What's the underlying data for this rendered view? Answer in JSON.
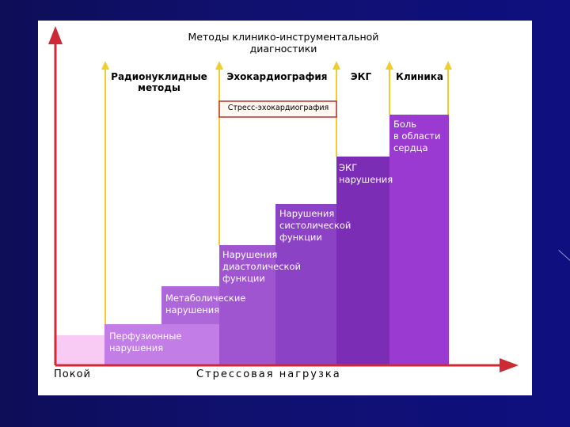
{
  "title": "Методы клинико-инструментальной диагностики",
  "method_headers": {
    "radionuclide": "Радионуклидные\nметоды",
    "echo": "Эхокардиография",
    "ecg": "ЭКГ",
    "clinic": "Клиника"
  },
  "stress_echo_label": "Стресс-эхокардиография",
  "steps": [
    {
      "label": "Перфузионные\nнарушения",
      "color": "#c27de6"
    },
    {
      "label": "Метаболические\nнарушения",
      "color": "#ae67d8"
    },
    {
      "label": "Нарушения\nдиастолической\nфункции",
      "color": "#9e55cf"
    },
    {
      "label": "Нарушения\nсистолической\nфункции",
      "color": "#8c42c4"
    },
    {
      "label": "ЭКГ\nнарушения",
      "color": "#7b2eb5"
    },
    {
      "label": "Боль\nв области\nсердца",
      "color": "#9b3ad1"
    }
  ],
  "baseline_color": "#f8cbf4",
  "arrow_color": "#cc2a35",
  "marker_color": "#f0cd2b",
  "x_axis": {
    "left_label": "Покой",
    "center_label": "Стрессовая нагрузка"
  }
}
